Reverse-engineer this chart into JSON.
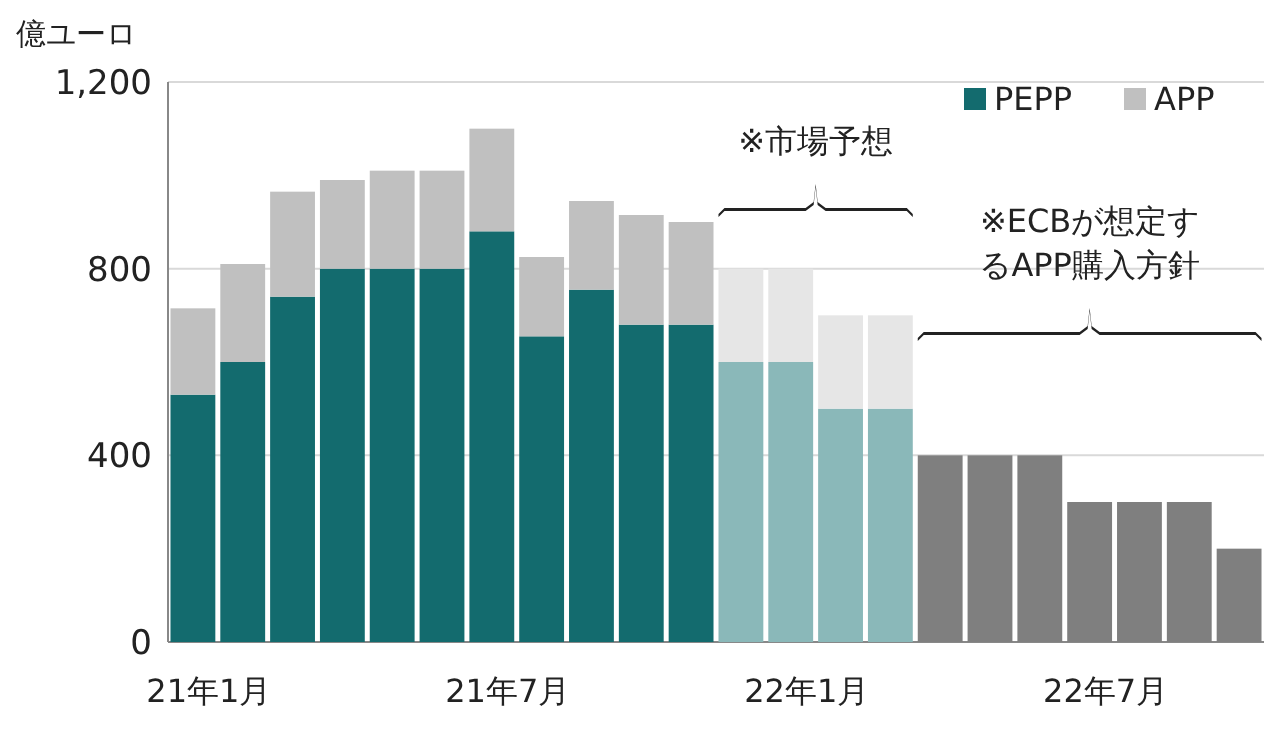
{
  "chart_data": {
    "type": "bar",
    "stacked": true,
    "ylabel": "億ユーロ",
    "categories": [
      "21年1月",
      null,
      null,
      null,
      null,
      null,
      "21年7月",
      null,
      null,
      null,
      null,
      null,
      "22年1月",
      null,
      null,
      null,
      null,
      null,
      "22年7月",
      null,
      null,
      null
    ],
    "series": [
      {
        "name": "PEPP",
        "color": "#136b6e",
        "values": [
          530,
          600,
          740,
          800,
          800,
          800,
          880,
          655,
          755,
          680,
          680,
          null,
          null,
          null,
          null,
          null,
          null,
          null,
          null,
          null,
          null,
          null
        ]
      },
      {
        "name": "APP",
        "color": "#c0c0c0",
        "values": [
          185,
          210,
          225,
          190,
          210,
          210,
          220,
          170,
          190,
          235,
          220,
          null,
          null,
          null,
          null,
          null,
          null,
          null,
          null,
          null,
          null,
          null
        ]
      },
      {
        "color": "#8ab8b9",
        "values": [
          null,
          null,
          null,
          null,
          null,
          null,
          null,
          null,
          null,
          null,
          null,
          600,
          600,
          500,
          500,
          null,
          null,
          null,
          null,
          null,
          null,
          null
        ]
      },
      {
        "color": "#e6e6e6",
        "values": [
          null,
          null,
          null,
          null,
          null,
          null,
          null,
          null,
          null,
          null,
          null,
          200,
          200,
          200,
          200,
          null,
          null,
          null,
          null,
          null,
          null,
          null
        ]
      },
      {
        "color": "#7f7f7f",
        "values": [
          null,
          null,
          null,
          null,
          null,
          null,
          null,
          null,
          null,
          null,
          null,
          null,
          null,
          null,
          null,
          400,
          400,
          400,
          300,
          300,
          300,
          200
        ]
      }
    ],
    "ylim": [
      0,
      1200
    ],
    "yticks": [
      0,
      400,
      800,
      {
        "value": 1200,
        "label": "1,200"
      }
    ],
    "grid": "y",
    "legend": "top right",
    "annotations": [
      "※市場予想",
      "※ECBが想定するAPP購入方針"
    ]
  }
}
